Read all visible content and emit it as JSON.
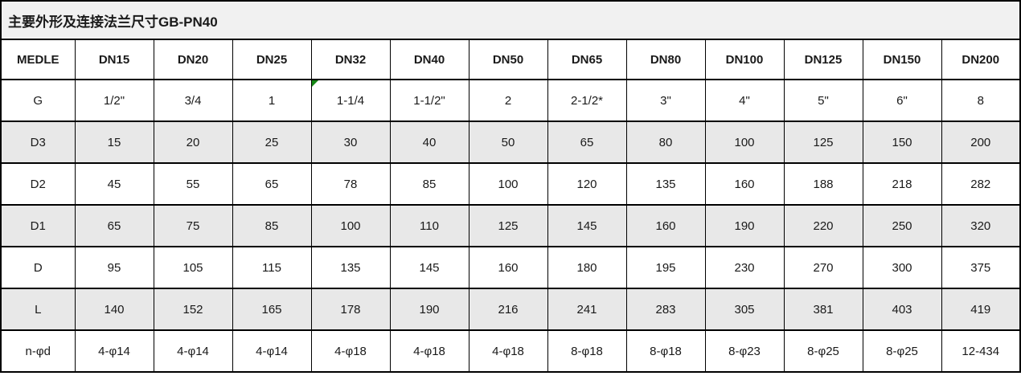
{
  "title": "主要外形及连接法兰尺寸GB-PN40",
  "colors": {
    "border": "#000000",
    "shaded_row_bg": "#e8e8e8",
    "title_row_bg": "#f1f1f1",
    "error_marker_green": "#148714",
    "text": "#1a1a1a"
  },
  "table": {
    "columns": [
      "MEDLE",
      "DN15",
      "DN20",
      "DN25",
      "DN32",
      "DN40",
      "DN50",
      "DN65",
      "DN80",
      "DN100",
      "DN125",
      "DN150",
      "DN200"
    ],
    "rows": [
      {
        "label": "G",
        "shaded": false,
        "marker_col": 3,
        "values": [
          "1/2\"",
          "3/4",
          "1",
          "1-1/4",
          "1-1/2\"",
          "2",
          "2-1/2*",
          "3\"",
          "4\"",
          "5\"",
          "6\"",
          "8"
        ]
      },
      {
        "label": "D3",
        "shaded": true,
        "marker_col": null,
        "values": [
          "15",
          "20",
          "25",
          "30",
          "40",
          "50",
          "65",
          "80",
          "100",
          "125",
          "150",
          "200"
        ]
      },
      {
        "label": "D2",
        "shaded": false,
        "marker_col": null,
        "values": [
          "45",
          "55",
          "65",
          "78",
          "85",
          "100",
          "120",
          "135",
          "160",
          "188",
          "218",
          "282"
        ]
      },
      {
        "label": "D1",
        "shaded": true,
        "marker_col": null,
        "values": [
          "65",
          "75",
          "85",
          "100",
          "110",
          "125",
          "145",
          "160",
          "190",
          "220",
          "250",
          "320"
        ]
      },
      {
        "label": "D",
        "shaded": false,
        "marker_col": null,
        "values": [
          "95",
          "105",
          "115",
          "135",
          "145",
          "160",
          "180",
          "195",
          "230",
          "270",
          "300",
          "375"
        ]
      },
      {
        "label": "L",
        "shaded": true,
        "marker_col": null,
        "values": [
          "140",
          "152",
          "165",
          "178",
          "190",
          "216",
          "241",
          "283",
          "305",
          "381",
          "403",
          "419"
        ]
      },
      {
        "label": "n-φd",
        "shaded": false,
        "marker_col": null,
        "values": [
          "4-φ14",
          "4-φ14",
          "4-φ14",
          "4-φ18",
          "4-φ18",
          "4-φ18",
          "8-φ18",
          "8-φ18",
          "8-φ23",
          "8-φ25",
          "8-φ25",
          "12-434"
        ]
      }
    ]
  },
  "chart_data": {
    "type": "table",
    "title": "主要外形及连接法兰尺寸GB-PN40",
    "columns": [
      "MEDLE",
      "DN15",
      "DN20",
      "DN25",
      "DN32",
      "DN40",
      "DN50",
      "DN65",
      "DN80",
      "DN100",
      "DN125",
      "DN150",
      "DN200"
    ],
    "rows": [
      [
        "G",
        "1/2\"",
        "3/4",
        "1",
        "1-1/4",
        "1-1/2\"",
        "2",
        "2-1/2*",
        "3\"",
        "4\"",
        "5\"",
        "6\"",
        "8"
      ],
      [
        "D3",
        "15",
        "20",
        "25",
        "30",
        "40",
        "50",
        "65",
        "80",
        "100",
        "125",
        "150",
        "200"
      ],
      [
        "D2",
        "45",
        "55",
        "65",
        "78",
        "85",
        "100",
        "120",
        "135",
        "160",
        "188",
        "218",
        "282"
      ],
      [
        "D1",
        "65",
        "75",
        "85",
        "100",
        "110",
        "125",
        "145",
        "160",
        "190",
        "220",
        "250",
        "320"
      ],
      [
        "D",
        "95",
        "105",
        "115",
        "135",
        "145",
        "160",
        "180",
        "195",
        "230",
        "270",
        "300",
        "375"
      ],
      [
        "L",
        "140",
        "152",
        "165",
        "178",
        "190",
        "216",
        "241",
        "283",
        "305",
        "381",
        "403",
        "419"
      ],
      [
        "n-φd",
        "4-φ14",
        "4-φ14",
        "4-φ14",
        "4-φ18",
        "4-φ18",
        "4-φ18",
        "8-φ18",
        "8-φ18",
        "8-φ23",
        "8-φ25",
        "8-φ25",
        "12-434"
      ]
    ]
  }
}
